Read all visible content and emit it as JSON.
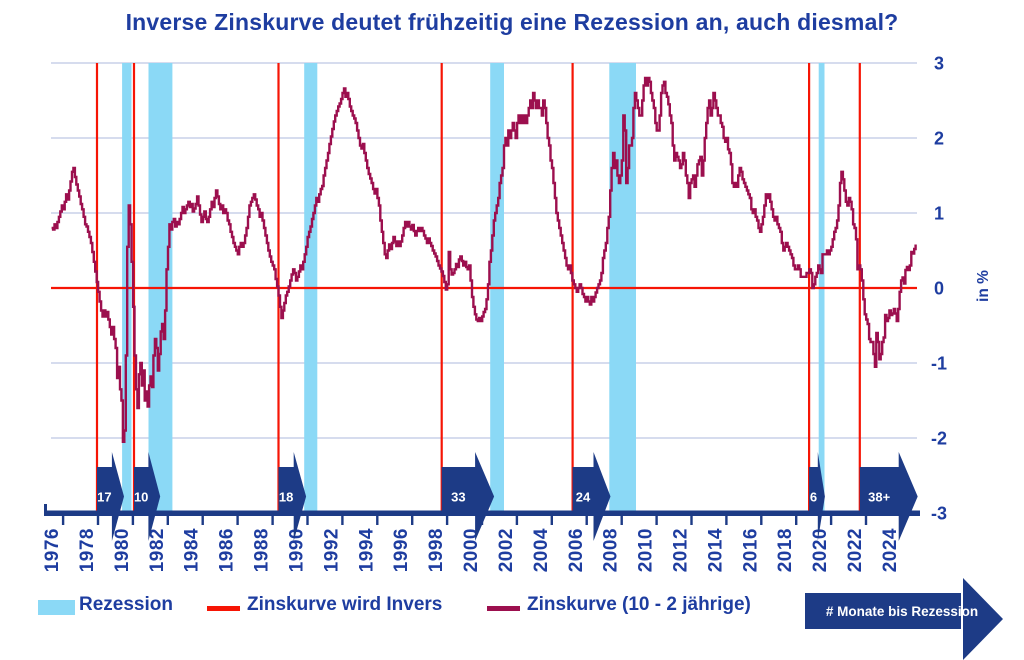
{
  "title": "Inverse Zinskurve deutet frühzeitig eine Rezession an, auch diesmal?",
  "colors": {
    "navy_text": "#1e3da0",
    "navy_shape": "#1d3b86",
    "grid": "#c9d0e8",
    "band": "#8bd9f6",
    "red": "#f61505",
    "curve": "#9c0f4e",
    "arrow_label": "#ffffff"
  },
  "y_axis": {
    "label": "in %",
    "tick_labels": [
      "3",
      "2",
      "1",
      "0",
      "-1",
      "-2",
      "-3"
    ],
    "tick_values": [
      3,
      2,
      1,
      0,
      -1,
      -2,
      -3
    ]
  },
  "x_axis": {
    "years": [
      1976,
      1978,
      1980,
      1982,
      1984,
      1986,
      1988,
      1990,
      1992,
      1994,
      1996,
      1998,
      2000,
      2002,
      2004,
      2006,
      2008,
      2010,
      2012,
      2014,
      2016,
      2018,
      2020,
      2022,
      2024
    ]
  },
  "legend": {
    "items": [
      {
        "label": "Rezession",
        "type": "band"
      },
      {
        "label": "Zinskurve wird Invers",
        "type": "red-line"
      },
      {
        "label": "Zinskurve (10 - 2 jährige)",
        "type": "maroon-line"
      }
    ],
    "arrow_label": "# Monate bis Rezession"
  },
  "chart_data": {
    "type": "line",
    "title": "Inverse Zinskurve deutet frühzeitig eine Rezession an, auch diesmal?",
    "xlabel": "",
    "ylabel": "in %",
    "ylim": [
      -3,
      3
    ],
    "x_range": [
      1976,
      2025.5
    ],
    "gridline_values": [
      3,
      2,
      1,
      -1,
      -2
    ],
    "zero_line": 0,
    "x_start_year": 1976,
    "x_step_months": 1,
    "recession_bands": [
      [
        1980.04,
        1980.58
      ],
      [
        1981.55,
        1982.92
      ],
      [
        1990.47,
        1991.22
      ],
      [
        2001.13,
        2001.92
      ],
      [
        2007.95,
        2009.48
      ],
      [
        2019.95,
        2020.28
      ]
    ],
    "inversion_lines": [
      1978.6,
      1980.72,
      1989.0,
      1998.35,
      2005.85,
      2019.4,
      2022.3
    ],
    "months_to_recession": [
      {
        "months": "17",
        "from": 1978.6,
        "to": 1980.15
      },
      {
        "months": "10",
        "from": 1980.72,
        "to": 1982.22
      },
      {
        "months": "18",
        "from": 1989.0,
        "to": 1990.58
      },
      {
        "months": "33",
        "from": 1998.35,
        "to": 2001.35
      },
      {
        "months": "24",
        "from": 2005.85,
        "to": 2008.02
      },
      {
        "months": "6",
        "from": 2019.4,
        "to": 2020.3
      },
      {
        "months": "38+",
        "from": 2022.3,
        "to": 2025.62
      }
    ],
    "series": [
      {
        "name": "Zinskurve (10 - 2 jährige)",
        "color": "#9c0f4e",
        "values": [
          0.8,
          0.78,
          0.85,
          0.8,
          0.88,
          0.95,
          1.02,
          1.1,
          1.05,
          1.15,
          1.25,
          1.18,
          1.3,
          1.42,
          1.55,
          1.6,
          1.48,
          1.38,
          1.3,
          1.22,
          1.12,
          1.05,
          0.95,
          0.85,
          0.82,
          0.75,
          0.68,
          0.6,
          0.48,
          0.35,
          0.22,
          0.08,
          -0.05,
          -0.18,
          -0.3,
          -0.38,
          -0.3,
          -0.38,
          -0.32,
          -0.42,
          -0.52,
          -0.62,
          -0.52,
          -0.68,
          -0.8,
          -1.2,
          -1.05,
          -1.35,
          -1.5,
          -2.05,
          -1.9,
          -0.9,
          0.55,
          1.1,
          0.85,
          0.35,
          -0.25,
          -0.9,
          -1.35,
          -1.6,
          -1.15,
          -1.0,
          -1.3,
          -1.1,
          -1.5,
          -1.38,
          -1.58,
          -1.3,
          -1.18,
          -1.32,
          -0.9,
          -0.68,
          -0.8,
          -1.1,
          -0.88,
          -0.58,
          -0.48,
          -0.68,
          -0.3,
          0.25,
          0.55,
          0.85,
          0.78,
          0.88,
          0.92,
          0.82,
          0.88,
          0.85,
          0.92,
          1.0,
          1.08,
          1.0,
          1.05,
          1.1,
          1.15,
          1.08,
          1.12,
          1.02,
          1.06,
          1.12,
          1.22,
          1.1,
          0.98,
          0.88,
          0.95,
          1.02,
          0.92,
          0.88,
          0.95,
          1.05,
          1.15,
          1.08,
          1.2,
          1.3,
          1.22,
          1.12,
          1.05,
          1.1,
          1.0,
          1.05,
          1.0,
          0.9,
          0.85,
          0.75,
          0.68,
          0.6,
          0.55,
          0.5,
          0.45,
          0.55,
          0.6,
          0.55,
          0.6,
          0.7,
          0.8,
          0.95,
          1.1,
          1.15,
          1.2,
          1.25,
          1.18,
          1.1,
          1.05,
          0.95,
          1.0,
          0.9,
          0.8,
          0.7,
          0.6,
          0.5,
          0.42,
          0.35,
          0.3,
          0.25,
          0.12,
          0.02,
          -0.1,
          -0.25,
          -0.4,
          -0.3,
          -0.2,
          -0.1,
          -0.05,
          0.02,
          0.1,
          0.18,
          0.25,
          0.2,
          0.1,
          0.15,
          0.22,
          0.3,
          0.25,
          0.35,
          0.45,
          0.55,
          0.68,
          0.75,
          0.82,
          0.92,
          1.0,
          1.1,
          1.2,
          1.15,
          1.25,
          1.32,
          1.36,
          1.5,
          1.6,
          1.7,
          1.8,
          1.92,
          2.02,
          2.12,
          2.22,
          2.3,
          2.36,
          2.42,
          2.46,
          2.52,
          2.6,
          2.66,
          2.55,
          2.6,
          2.52,
          2.42,
          2.36,
          2.3,
          2.26,
          2.2,
          2.1,
          2.0,
          1.9,
          1.86,
          1.92,
          1.8,
          1.7,
          1.6,
          1.52,
          1.46,
          1.4,
          1.32,
          1.26,
          1.32,
          1.2,
          1.1,
          0.9,
          0.75,
          0.6,
          0.45,
          0.4,
          0.5,
          0.58,
          0.52,
          0.6,
          0.68,
          0.62,
          0.56,
          0.62,
          0.56,
          0.62,
          0.7,
          0.8,
          0.88,
          0.82,
          0.88,
          0.82,
          0.78,
          0.84,
          0.76,
          0.7,
          0.76,
          0.8,
          0.76,
          0.8,
          0.76,
          0.7,
          0.66,
          0.6,
          0.66,
          0.6,
          0.56,
          0.5,
          0.46,
          0.42,
          0.36,
          0.3,
          0.26,
          0.22,
          0.16,
          0.08,
          -0.02,
          0.05,
          0.48,
          0.25,
          0.18,
          0.2,
          0.25,
          0.32,
          0.28,
          0.38,
          0.42,
          0.36,
          0.3,
          0.35,
          0.28,
          0.25,
          0.3,
          0.1,
          -0.12,
          -0.25,
          -0.35,
          -0.42,
          -0.44,
          -0.4,
          -0.44,
          -0.38,
          -0.32,
          -0.28,
          -0.15,
          0.05,
          0.35,
          0.5,
          0.7,
          0.9,
          1.0,
          1.1,
          1.2,
          1.4,
          1.5,
          1.6,
          1.9,
          2.0,
          1.9,
          2.1,
          2.0,
          2.1,
          2.2,
          2.1,
          2.0,
          2.2,
          2.3,
          2.2,
          2.3,
          2.2,
          2.3,
          2.2,
          2.3,
          2.4,
          2.5,
          2.4,
          2.6,
          2.5,
          2.4,
          2.5,
          2.4,
          2.4,
          2.3,
          2.5,
          2.4,
          2.2,
          2.0,
          1.9,
          1.7,
          1.6,
          1.4,
          1.2,
          1.0,
          0.9,
          0.8,
          0.7,
          0.6,
          0.5,
          0.4,
          0.3,
          0.25,
          0.3,
          0.2,
          0.1,
          0.05,
          0.0,
          -0.05,
          0.0,
          0.05,
          0.0,
          -0.08,
          -0.12,
          -0.18,
          -0.12,
          -0.18,
          -0.22,
          -0.12,
          -0.18,
          -0.12,
          -0.06,
          0.0,
          0.05,
          0.1,
          0.2,
          0.4,
          0.5,
          0.6,
          0.8,
          0.95,
          1.3,
          1.6,
          1.8,
          1.6,
          1.7,
          1.5,
          1.4,
          1.5,
          1.7,
          2.3,
          2.1,
          1.4,
          1.6,
          1.9,
          1.9,
          2.0,
          2.4,
          2.6,
          2.5,
          2.4,
          2.3,
          2.3,
          2.5,
          2.7,
          2.8,
          2.7,
          2.8,
          2.75,
          2.6,
          2.5,
          2.4,
          2.2,
          2.1,
          2.1,
          2.3,
          2.6,
          2.7,
          2.75,
          2.6,
          2.55,
          2.45,
          2.3,
          2.2,
          1.9,
          1.7,
          1.8,
          1.75,
          1.7,
          1.6,
          1.65,
          1.8,
          1.7,
          1.5,
          1.4,
          1.2,
          1.4,
          1.45,
          1.5,
          1.35,
          1.5,
          1.65,
          1.7,
          1.75,
          1.5,
          1.7,
          2.0,
          2.2,
          2.4,
          2.5,
          2.3,
          2.4,
          2.6,
          2.5,
          2.4,
          2.3,
          2.3,
          2.2,
          2.15,
          2.0,
          1.95,
          2.0,
          1.85,
          1.8,
          1.65,
          1.4,
          1.35,
          1.4,
          1.35,
          1.5,
          1.6,
          1.55,
          1.45,
          1.4,
          1.35,
          1.3,
          1.25,
          1.2,
          1.05,
          1.0,
          1.05,
          0.95,
          0.9,
          0.8,
          0.75,
          0.85,
          0.95,
          1.1,
          1.25,
          1.2,
          1.25,
          1.15,
          1.05,
          0.95,
          0.9,
          0.95,
          0.85,
          0.8,
          0.75,
          0.6,
          0.5,
          0.55,
          0.6,
          0.55,
          0.5,
          0.45,
          0.4,
          0.3,
          0.25,
          0.25,
          0.3,
          0.25,
          0.15,
          0.15,
          0.15,
          0.15,
          0.2,
          0.2,
          0.25,
          0.2,
          0.0,
          0.05,
          0.15,
          0.2,
          0.3,
          0.25,
          0.2,
          0.45,
          0.45,
          0.45,
          0.5,
          0.45,
          0.5,
          0.55,
          0.65,
          0.75,
          0.8,
          0.9,
          1.1,
          1.4,
          1.55,
          1.45,
          1.3,
          1.15,
          1.1,
          1.2,
          1.15,
          1.05,
          0.85,
          0.8,
          0.65,
          0.25,
          0.3,
          0.25,
          0.1,
          -0.15,
          -0.35,
          -0.42,
          -0.48,
          -0.68,
          -0.72,
          -0.72,
          -0.88,
          -1.05,
          -0.6,
          -0.72,
          -0.95,
          -0.88,
          -0.72,
          -0.66,
          -0.36,
          -0.44,
          -0.4,
          -0.3,
          -0.36,
          -0.34,
          -0.28,
          -0.34,
          -0.44,
          -0.28,
          -0.05,
          0.1,
          0.14,
          0.06,
          0.24,
          0.28,
          0.24,
          0.3,
          0.48,
          0.46,
          0.52,
          0.58
        ]
      }
    ]
  }
}
